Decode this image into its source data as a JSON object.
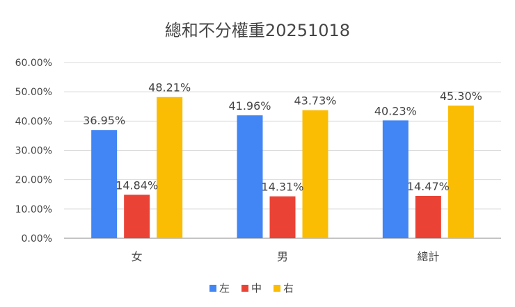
{
  "chart_data": {
    "type": "bar",
    "title": "總和不分權重20251018",
    "categories": [
      "女",
      "男",
      "總計"
    ],
    "series": [
      {
        "name": "左",
        "color": "#4285f4",
        "values": [
          36.95,
          41.96,
          40.23
        ],
        "labels": [
          "36.95%",
          "41.96%",
          "40.23%"
        ]
      },
      {
        "name": "中",
        "color": "#ea4335",
        "values": [
          14.84,
          14.31,
          14.47
        ],
        "labels": [
          "14.84%",
          "14.31%",
          "14.47%"
        ]
      },
      {
        "name": "右",
        "color": "#fbbc04",
        "values": [
          48.21,
          43.73,
          45.3
        ],
        "labels": [
          "48.21%",
          "43.73%",
          "45.30%"
        ]
      }
    ],
    "ylim": [
      0,
      60
    ],
    "yticks": [
      0,
      10,
      20,
      30,
      40,
      50,
      60
    ],
    "ytick_labels": [
      "0.00%",
      "10.00%",
      "20.00%",
      "30.00%",
      "40.00%",
      "50.00%",
      "60.00%"
    ],
    "grid": true,
    "legend_position": "bottom",
    "xlabel": "",
    "ylabel": ""
  }
}
